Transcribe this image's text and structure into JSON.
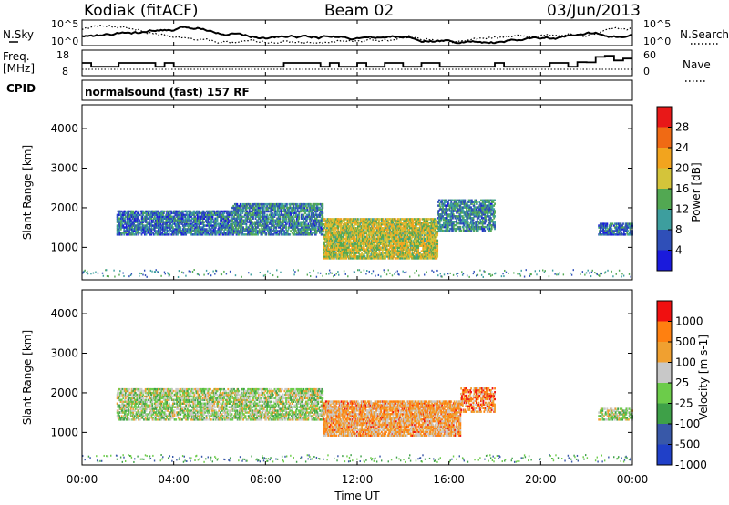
{
  "header": {
    "station": "Kodiak (fitACF)",
    "beam": "Beam 02",
    "date": "03/Jun/2013"
  },
  "noise_panel": {
    "left_label": "N.Sky",
    "left_ticks": [
      "10^5",
      "10^0"
    ],
    "right_ticks": [
      "10^5",
      "10^0"
    ],
    "right_label": "N.Search"
  },
  "freq_panel": {
    "left_label_1": "Freq.",
    "left_label_2": "[MHz]",
    "left_ticks": [
      "18",
      "8"
    ],
    "right_ticks": [
      "60",
      "0"
    ],
    "right_label": "Nave",
    "nave_fraction_scale": [
      0.0,
      0.05,
      0.6,
      0.75,
      0.9
    ]
  },
  "cpid_panel": {
    "label": "CPID",
    "text": "normalsound (fast) 157 RF"
  },
  "chart_data": [
    {
      "type": "heatmap",
      "name": "power-panel",
      "ylabel": "Slant Range [km]",
      "yticks": [
        "1000",
        "2000",
        "3000",
        "4000"
      ],
      "ylim": [
        180,
        4600
      ],
      "xlim_hours": [
        0,
        24
      ],
      "colorbar_label": "Power [dB]",
      "colorbar_ticks": [
        "4",
        "8",
        "12",
        "16",
        "20",
        "24",
        "28"
      ],
      "colorbar_colors": [
        "#1a1adc",
        "#2f4fb8",
        "#3d9e9e",
        "#52a852",
        "#d4c43a",
        "#f2a41e",
        "#f06a14",
        "#e81818"
      ],
      "colorbar_range": [
        0,
        32
      ],
      "scatter_regions_km": [
        {
          "t0": 1.5,
          "t1": 6.5,
          "r0": 1300,
          "r1": 1900,
          "density": 0.65,
          "level": 0.25
        },
        {
          "t0": 6.5,
          "t1": 10.5,
          "r0": 1300,
          "r1": 2100,
          "density": 0.6,
          "level": 0.3
        },
        {
          "t0": 10.5,
          "t1": 15.5,
          "r0": 700,
          "r1": 1700,
          "density": 0.75,
          "level": 0.55
        },
        {
          "t0": 15.5,
          "t1": 18.0,
          "r0": 1400,
          "r1": 2200,
          "density": 0.55,
          "level": 0.3
        },
        {
          "t0": 22.5,
          "t1": 24.0,
          "r0": 1300,
          "r1": 1600,
          "density": 0.6,
          "level": 0.25
        }
      ]
    },
    {
      "type": "heatmap",
      "name": "velocity-panel",
      "ylabel": "Slant Range [km]",
      "yticks": [
        "1000",
        "2000",
        "3000",
        "4000"
      ],
      "ylim": [
        180,
        4600
      ],
      "xlim_hours": [
        0,
        24
      ],
      "colorbar_label": "Velocity [m s-1]",
      "colorbar_ticks": [
        "1000",
        "500",
        "100",
        "25",
        "-25",
        "-100",
        "-500",
        "-1000"
      ],
      "colorbar_colors": [
        "#2040c8",
        "#3858a8",
        "#3ea048",
        "#6ccc4a",
        "#c8c8c8",
        "#f0a030",
        "#ff8010",
        "#f01010"
      ],
      "colorbar_range": [
        -1000,
        1000
      ],
      "scatter_regions_km": [
        {
          "t0": 1.5,
          "t1": 10.5,
          "r0": 1300,
          "r1": 2100,
          "density": 0.55,
          "level": 0.5
        },
        {
          "t0": 10.5,
          "t1": 16.5,
          "r0": 900,
          "r1": 1800,
          "density": 0.7,
          "level": 0.7
        },
        {
          "t0": 16.5,
          "t1": 18.0,
          "r0": 1500,
          "r1": 2100,
          "density": 0.5,
          "level": 0.75
        },
        {
          "t0": 22.5,
          "t1": 24.0,
          "r0": 1300,
          "r1": 1600,
          "density": 0.5,
          "level": 0.5
        }
      ]
    }
  ],
  "xaxis": {
    "ticks": [
      "00:00",
      "04:00",
      "08:00",
      "12:00",
      "16:00",
      "20:00",
      "00:00"
    ],
    "label": "Time UT"
  }
}
